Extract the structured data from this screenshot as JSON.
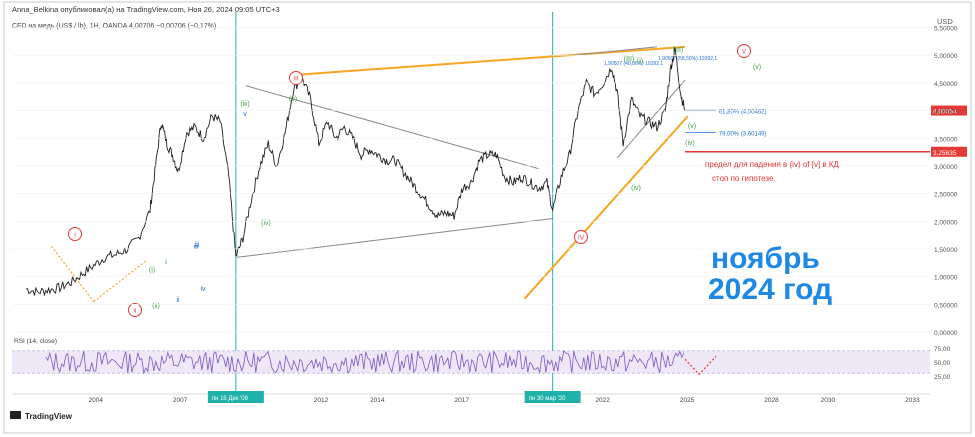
{
  "header": {
    "published_line": "Anna_Belkina опубликовал(а) на TradingView.com, Ноя 26, 2024 09:05 UTC+3",
    "symbol_line": "CFD на медь (US$ / lb), 1Н, OANDA  4,00706 −0,00706 (−0,17%)"
  },
  "chart_data": {
    "type": "line",
    "title": "",
    "currency": "USD",
    "x": [
      2001.5,
      2001.9,
      2002.3,
      2002.7,
      2003.1,
      2003.5,
      2003.9,
      2004.3,
      2004.7,
      2005.1,
      2005.5,
      2005.9,
      2006.1,
      2006.3,
      2006.5,
      2006.7,
      2006.9,
      2007.2,
      2007.5,
      2007.8,
      2008.1,
      2008.4,
      2008.7,
      2008.95,
      2009.2,
      2009.5,
      2009.8,
      2010.1,
      2010.4,
      2010.7,
      2011.0,
      2011.3,
      2011.6,
      2011.9,
      2012.2,
      2012.5,
      2012.8,
      2013.1,
      2013.4,
      2013.7,
      2014.0,
      2014.3,
      2014.6,
      2014.9,
      2015.2,
      2015.5,
      2015.8,
      2016.1,
      2016.4,
      2016.7,
      2017.0,
      2017.3,
      2017.6,
      2017.9,
      2018.2,
      2018.5,
      2018.8,
      2019.1,
      2019.4,
      2019.7,
      2020.0,
      2020.2,
      2020.5,
      2020.8,
      2021.1,
      2021.4,
      2021.7,
      2022.0,
      2022.3,
      2022.5,
      2022.7,
      2023.0,
      2023.3,
      2023.6,
      2023.9,
      2024.2,
      2024.4,
      2024.55,
      2024.75,
      2024.9
    ],
    "series": [
      {
        "values": [
          0.78,
          0.72,
          0.76,
          0.8,
          0.9,
          1.05,
          1.2,
          1.35,
          1.4,
          1.5,
          1.7,
          2.2,
          3.0,
          3.8,
          3.4,
          3.2,
          2.9,
          3.6,
          3.7,
          3.5,
          3.9,
          3.8,
          2.8,
          1.35,
          1.7,
          2.4,
          3.0,
          3.4,
          3.0,
          3.6,
          4.4,
          4.6,
          4.2,
          3.4,
          3.8,
          3.5,
          3.7,
          3.5,
          3.2,
          3.3,
          3.2,
          3.1,
          3.1,
          2.9,
          2.7,
          2.5,
          2.3,
          2.1,
          2.15,
          2.1,
          2.6,
          2.7,
          3.1,
          3.2,
          3.2,
          2.8,
          2.7,
          2.8,
          2.7,
          2.6,
          2.7,
          2.2,
          2.8,
          3.2,
          4.0,
          4.5,
          4.3,
          4.5,
          4.8,
          4.3,
          3.4,
          4.2,
          3.9,
          3.8,
          3.7,
          4.0,
          4.8,
          5.1,
          4.3,
          4.0
        ]
      }
    ],
    "ylim": [
      0,
      5.6
    ],
    "xlim": [
      2001.0,
      2033.6
    ],
    "y_ticks": [
      "5,50000",
      "5,00000",
      "4,50000",
      "4,00000",
      "3,50000",
      "3,00000",
      "2,50000",
      "2,00000",
      "1,50000",
      "1,00000",
      "0,50000",
      "0,00000"
    ],
    "x_ticks": [
      "2004",
      "2007",
      "2012",
      "2014",
      "2017",
      "2022",
      "2025",
      "2028",
      "2030",
      "2033"
    ],
    "price_label": "4,00054",
    "stop_label": "3,25635",
    "fib_levels": [
      {
        "label": "61,80% (4,00462)",
        "value": 4.005
      },
      {
        "label": "79,00% (3,60149)",
        "value": 3.601
      }
    ],
    "measure_labels": [
      "1,90507 (40,86%) 19392,1",
      "1,90507 (58,50%) 19392,1"
    ],
    "vertical_markers": [
      "пн 15 Дек '08",
      "пн 30 мар '20"
    ],
    "wave_labels_red": [
      "i",
      "ii",
      "III",
      "IV",
      "V"
    ],
    "wave_labels_green": [
      "(i)",
      "(ii)",
      "(iii)",
      "(iv)",
      "(v)",
      "(III)",
      "(iv)",
      "(v)",
      "(i)",
      "(III)",
      "(iv)",
      "(v)"
    ],
    "wave_labels_blue": [
      "iii",
      "i",
      "ii",
      "iv",
      "v",
      "iii"
    ],
    "rsi": {
      "label": "RSI (14, close)",
      "y_ticks": [
        "75,00",
        "50,00",
        "25,00"
      ],
      "band": [
        30,
        70
      ]
    }
  },
  "annotations": {
    "limit_note": "предел для падения в (iv) of [v] в КД",
    "stop_note": "стоп по гипотезе.",
    "big_label_line1": "ноябрь",
    "big_label_line2": "2024 год"
  },
  "branding": {
    "logo_text": "TradingView"
  },
  "colors": {
    "price_line": "#1f1f1f",
    "orange": "#f5a623",
    "teal": "#20b2aa",
    "red": "#e53935",
    "green": "#43a047",
    "blue": "#1e6fd9",
    "rsi_line": "#7e57c2",
    "rsi_band": "#ede7f6",
    "stop_line": "#e53935"
  }
}
